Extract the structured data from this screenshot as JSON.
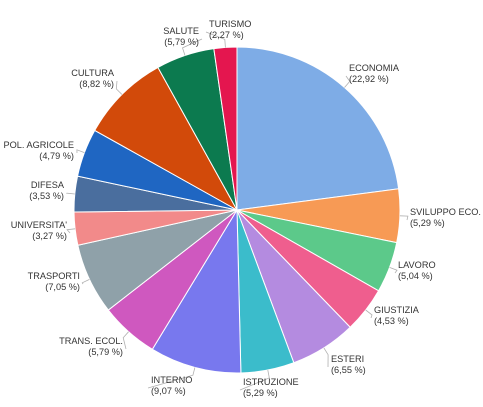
{
  "chart_data": {
    "type": "pie",
    "title": "",
    "start_angle_deg": 0,
    "direction": "clockwise",
    "slices": [
      {
        "label": "ECONOMIA",
        "value": 22.92,
        "value_label": "(22,92 %)",
        "color": "#7EACE6"
      },
      {
        "label": "SVILUPPO ECO.",
        "value": 5.29,
        "value_label": "(5,29 %)",
        "color": "#F79A55"
      },
      {
        "label": "LAVORO",
        "value": 5.04,
        "value_label": "(5,04 %)",
        "color": "#5CC98A"
      },
      {
        "label": "GIUSTIZIA",
        "value": 4.53,
        "value_label": "(4,53 %)",
        "color": "#EF5E8E"
      },
      {
        "label": "ESTERI",
        "value": 6.55,
        "value_label": "(6,55 %)",
        "color": "#B48BE0"
      },
      {
        "label": "ISTRUZIONE",
        "value": 5.29,
        "value_label": "(5,29 %)",
        "color": "#3BBCCB"
      },
      {
        "label": "INTERNO",
        "value": 9.07,
        "value_label": "(9,07 %)",
        "color": "#7878EE"
      },
      {
        "label": "TRANS. ECOL.",
        "value": 5.79,
        "value_label": "(5,79 %)",
        "color": "#CF58BF"
      },
      {
        "label": "TRASPORTI",
        "value": 7.05,
        "value_label": "(7,05 %)",
        "color": "#8FA1A9"
      },
      {
        "label": "UNIVERSITA'",
        "value": 3.27,
        "value_label": "(3,27 %)",
        "color": "#F28A8A"
      },
      {
        "label": "DIFESA",
        "value": 3.53,
        "value_label": "(3,53 %)",
        "color": "#4A6E9E"
      },
      {
        "label": "POL. AGRICOLE",
        "value": 4.79,
        "value_label": "(4,79 %)",
        "color": "#1F66C2"
      },
      {
        "label": "CULTURA",
        "value": 8.82,
        "value_label": "(8,82 %)",
        "color": "#D24A0A"
      },
      {
        "label": "SALUTE",
        "value": 5.79,
        "value_label": "(5,79 %)",
        "color": "#0C7A4F"
      },
      {
        "label": "TURISMO",
        "value": 2.27,
        "value_label": "(2,27 %)",
        "color": "#E4164F"
      }
    ]
  }
}
